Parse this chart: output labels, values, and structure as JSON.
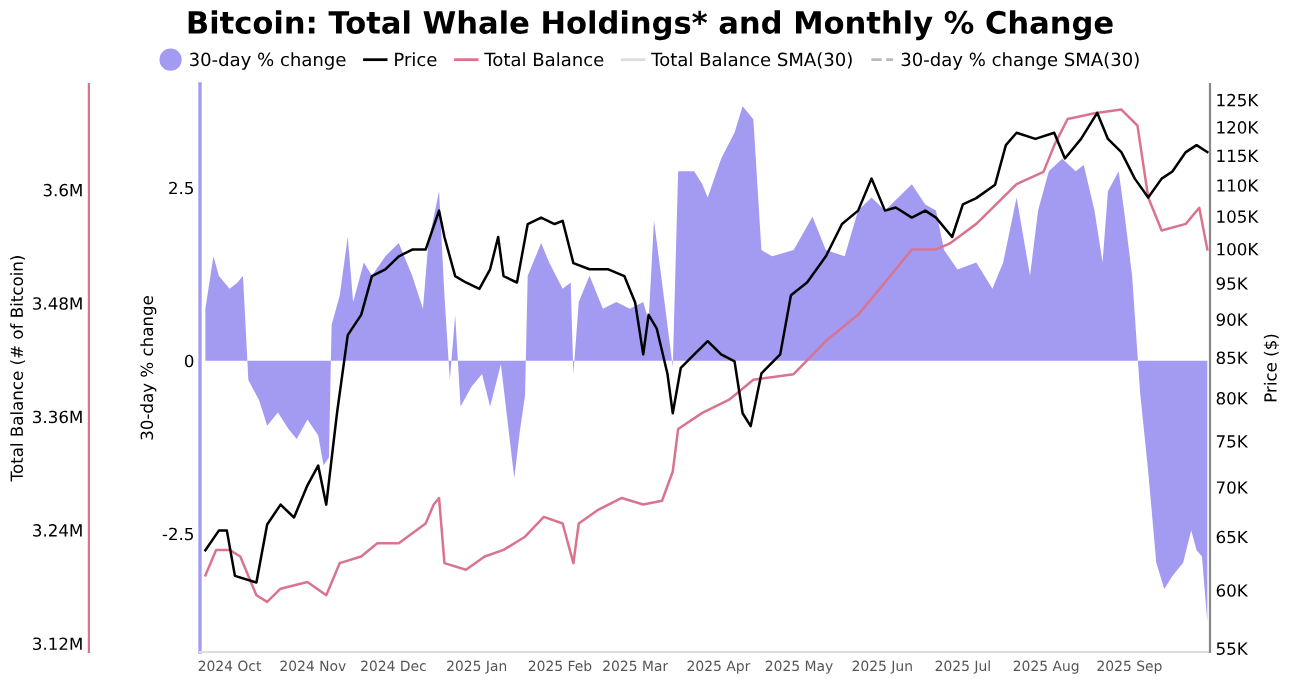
{
  "chart_data": {
    "type": "line",
    "title": "Bitcoin: Total Whale Holdings* and Monthly % Change",
    "ylabel": "Total Balance (# of Bitcoin)",
    "y2label": "Price ($)",
    "y3label": "30-day % change",
    "xlim": [
      "2024-09-20",
      "2025-10-01"
    ],
    "xticks": [
      {
        "value": "2024-10-01",
        "label": "2024 Oct"
      },
      {
        "value": "2024-11-01",
        "label": "2024 Nov"
      },
      {
        "value": "2024-12-01",
        "label": "2024 Dec"
      },
      {
        "value": "2025-01-01",
        "label": "2025 Jan"
      },
      {
        "value": "2025-02-01",
        "label": "2025 Feb"
      },
      {
        "value": "2025-03-01",
        "label": "2025 Mar"
      },
      {
        "value": "2025-04-01",
        "label": "2025 Apr"
      },
      {
        "value": "2025-05-01",
        "label": "2025 May"
      },
      {
        "value": "2025-06-01",
        "label": "2025 Jun"
      },
      {
        "value": "2025-07-01",
        "label": "2025 Jul"
      },
      {
        "value": "2025-08-01",
        "label": "2025 Aug"
      },
      {
        "value": "2025-09-01",
        "label": "2025 Sep"
      }
    ],
    "ylim": [
      3.111,
      3.712
    ],
    "yticks": [
      {
        "value": 3.12,
        "label": "3.12M"
      },
      {
        "value": 3.24,
        "label": "3.24M"
      },
      {
        "value": 3.36,
        "label": "3.36M"
      },
      {
        "value": 3.48,
        "label": "3.48M"
      },
      {
        "value": 3.6,
        "label": "3.6M"
      }
    ],
    "y3lim": [
      -4.21,
      4.0
    ],
    "y3ticks": [
      -2.5,
      0,
      2.5
    ],
    "log": "y2",
    "y2lim": [
      54.7,
      128
    ],
    "y2ticks": [
      {
        "value": 55,
        "label": "55K"
      },
      {
        "value": 60,
        "label": "60K"
      },
      {
        "value": 65,
        "label": "65K"
      },
      {
        "value": 70,
        "label": "70K"
      },
      {
        "value": 75,
        "label": "75K"
      },
      {
        "value": 80,
        "label": "80K"
      },
      {
        "value": 85,
        "label": "85K"
      },
      {
        "value": 90,
        "label": "90K"
      },
      {
        "value": 95,
        "label": "95K"
      },
      {
        "value": 100,
        "label": "100K"
      },
      {
        "value": 105,
        "label": "105K"
      },
      {
        "value": 110,
        "label": "110K"
      },
      {
        "value": 115,
        "label": "115K"
      },
      {
        "value": 120,
        "label": "120K"
      },
      {
        "value": 125,
        "label": "125K"
      }
    ],
    "legend": "top",
    "grid": false,
    "series": [
      {
        "name": "30-day % change",
        "type": "area",
        "axis": "y3",
        "color": "#a39bf2",
        "x": [
          "2024-09-22",
          "2024-09-25",
          "2024-09-27",
          "2024-10-01",
          "2024-10-04",
          "2024-10-06",
          "2024-10-08",
          "2024-10-12",
          "2024-10-15",
          "2024-10-19",
          "2024-10-23",
          "2024-10-26",
          "2024-10-30",
          "2024-11-03",
          "2024-11-05",
          "2024-11-07",
          "2024-11-08",
          "2024-11-11",
          "2024-11-14",
          "2024-11-16",
          "2024-11-20",
          "2024-11-23",
          "2024-11-28",
          "2024-12-03",
          "2024-12-08",
          "2024-12-12",
          "2024-12-14",
          "2024-12-18",
          "2024-12-20",
          "2024-12-22",
          "2024-12-24",
          "2024-12-26",
          "2024-12-30",
          "2025-01-03",
          "2025-01-06",
          "2025-01-10",
          "2025-01-13",
          "2025-01-15",
          "2025-01-17",
          "2025-01-19",
          "2025-01-20",
          "2025-01-25",
          "2025-01-28",
          "2025-02-02",
          "2025-02-05",
          "2025-02-06",
          "2025-02-08",
          "2025-02-12",
          "2025-02-17",
          "2025-02-22",
          "2025-02-27",
          "2025-03-04",
          "2025-03-06",
          "2025-03-08",
          "2025-03-11",
          "2025-03-15",
          "2025-03-17",
          "2025-03-23",
          "2025-03-26",
          "2025-03-28",
          "2025-04-02",
          "2025-04-07",
          "2025-04-10",
          "2025-04-14",
          "2025-04-17",
          "2025-04-21",
          "2025-04-29",
          "2025-05-06",
          "2025-05-11",
          "2025-05-18",
          "2025-05-23",
          "2025-05-28",
          "2025-06-02",
          "2025-06-12",
          "2025-06-17",
          "2025-06-21",
          "2025-06-24",
          "2025-06-29",
          "2025-07-06",
          "2025-07-12",
          "2025-07-16",
          "2025-07-21",
          "2025-07-26",
          "2025-07-29",
          "2025-08-02",
          "2025-08-07",
          "2025-08-12",
          "2025-08-15",
          "2025-08-19",
          "2025-08-22",
          "2025-08-24",
          "2025-08-28",
          "2025-08-30",
          "2025-09-02",
          "2025-09-05",
          "2025-09-08",
          "2025-09-11",
          "2025-09-14",
          "2025-09-17",
          "2025-09-21",
          "2025-09-24",
          "2025-09-26",
          "2025-09-28",
          "2025-09-30"
        ],
        "values": [
          0.75,
          1.51,
          1.23,
          1.04,
          1.13,
          1.23,
          -0.28,
          -0.57,
          -0.94,
          -0.75,
          -0.99,
          -1.13,
          -0.85,
          -1.08,
          -1.51,
          -1.4,
          0.52,
          0.94,
          1.79,
          0.85,
          1.42,
          1.23,
          1.51,
          1.7,
          1.23,
          0.75,
          1.7,
          2.45,
          0.94,
          -0.28,
          0.66,
          -0.66,
          -0.38,
          -0.19,
          -0.66,
          -0.05,
          -1.04,
          -1.7,
          -1.04,
          -0.5,
          1.23,
          1.7,
          1.42,
          1.04,
          1.13,
          -0.19,
          0.85,
          1.23,
          0.75,
          0.85,
          0.75,
          0.85,
          0.57,
          2.03,
          1.13,
          -0.09,
          2.74,
          2.74,
          2.55,
          2.36,
          2.92,
          3.3,
          3.68,
          3.49,
          1.6,
          1.51,
          1.6,
          2.08,
          1.6,
          1.51,
          2.17,
          2.36,
          2.17,
          2.55,
          2.26,
          2.17,
          1.6,
          1.32,
          1.42,
          1.04,
          1.42,
          2.36,
          1.23,
          2.17,
          2.74,
          2.92,
          2.74,
          2.83,
          2.17,
          1.42,
          2.45,
          2.74,
          2.17,
          1.23,
          -0.47,
          -1.6,
          -2.92,
          -3.3,
          -3.11,
          -2.92,
          -2.45,
          -2.74,
          -2.83,
          -3.77
        ]
      },
      {
        "name": "Price",
        "axis": "y2",
        "color": "#000000",
        "x": [
          "2024-09-22",
          "2024-09-27",
          "2024-09-30",
          "2024-10-03",
          "2024-10-11",
          "2024-10-15",
          "2024-10-20",
          "2024-10-25",
          "2024-10-30",
          "2024-11-03",
          "2024-11-06",
          "2024-11-10",
          "2024-11-14",
          "2024-11-19",
          "2024-11-23",
          "2024-11-28",
          "2024-12-03",
          "2024-12-08",
          "2024-12-13",
          "2024-12-18",
          "2024-12-20",
          "2024-12-24",
          "2024-12-28",
          "2025-01-02",
          "2025-01-06",
          "2025-01-09",
          "2025-01-11",
          "2025-01-16",
          "2025-01-20",
          "2025-01-25",
          "2025-01-30",
          "2025-02-02",
          "2025-02-06",
          "2025-02-12",
          "2025-02-19",
          "2025-02-25",
          "2025-03-01",
          "2025-03-04",
          "2025-03-06",
          "2025-03-09",
          "2025-03-13",
          "2025-03-15",
          "2025-03-18",
          "2025-03-23",
          "2025-03-28",
          "2025-04-02",
          "2025-04-07",
          "2025-04-10",
          "2025-04-13",
          "2025-04-17",
          "2025-04-24",
          "2025-04-28",
          "2025-05-04",
          "2025-05-11",
          "2025-05-17",
          "2025-05-23",
          "2025-05-28",
          "2025-06-02",
          "2025-06-06",
          "2025-06-12",
          "2025-06-17",
          "2025-06-21",
          "2025-06-27",
          "2025-07-01",
          "2025-07-06",
          "2025-07-13",
          "2025-07-17",
          "2025-07-21",
          "2025-07-28",
          "2025-08-04",
          "2025-08-08",
          "2025-08-14",
          "2025-08-20",
          "2025-08-24",
          "2025-08-29",
          "2025-09-03",
          "2025-09-08",
          "2025-09-13",
          "2025-09-17",
          "2025-09-22",
          "2025-09-26",
          "2025-09-30"
        ],
        "values": [
          63.7,
          65.6,
          65.6,
          61.3,
          60.7,
          66.2,
          68.2,
          66.9,
          70.2,
          72.3,
          68.2,
          78.2,
          87.9,
          90.6,
          96.0,
          97.0,
          98.9,
          99.9,
          99.9,
          105.9,
          101.8,
          96.0,
          95.1,
          94.2,
          97.0,
          101.8,
          96.0,
          95.1,
          103.8,
          104.8,
          103.8,
          104.3,
          97.9,
          97.0,
          97.0,
          96.0,
          92.3,
          85.4,
          90.6,
          88.8,
          83.0,
          78.2,
          83.7,
          85.4,
          87.1,
          85.4,
          84.5,
          78.2,
          76.7,
          83.0,
          85.4,
          93.3,
          95.1,
          98.9,
          103.8,
          105.9,
          111.1,
          105.9,
          106.4,
          104.8,
          105.9,
          104.8,
          101.8,
          106.9,
          107.9,
          110.1,
          116.8,
          119.0,
          117.9,
          119.0,
          114.5,
          117.9,
          122.6,
          117.9,
          115.6,
          111.1,
          108.0,
          111.1,
          112.3,
          115.6,
          116.8,
          115.6
        ]
      },
      {
        "name": "Total Balance",
        "type": "line",
        "axis": "y",
        "color": "#d9748f",
        "x": [
          "2024-09-22",
          "2024-09-26",
          "2024-10-01",
          "2024-10-05",
          "2024-10-11",
          "2024-10-15",
          "2024-10-20",
          "2024-10-30",
          "2024-11-06",
          "2024-11-11",
          "2024-11-19",
          "2024-11-25",
          "2024-12-03",
          "2024-12-13",
          "2024-12-16",
          "2024-12-18",
          "2024-12-20",
          "2024-12-28",
          "2025-01-04",
          "2025-01-11",
          "2025-01-19",
          "2025-01-26",
          "2025-02-02",
          "2025-02-06",
          "2025-02-08",
          "2025-02-15",
          "2025-02-24",
          "2025-03-04",
          "2025-03-11",
          "2025-03-15",
          "2025-03-17",
          "2025-03-26",
          "2025-04-05",
          "2025-04-14",
          "2025-04-29",
          "2025-05-11",
          "2025-05-23",
          "2025-06-02",
          "2025-06-12",
          "2025-06-21",
          "2025-06-26",
          "2025-07-06",
          "2025-07-16",
          "2025-07-21",
          "2025-07-31",
          "2025-08-04",
          "2025-08-09",
          "2025-08-19",
          "2025-08-29",
          "2025-09-04",
          "2025-09-08",
          "2025-09-13",
          "2025-09-22",
          "2025-09-27",
          "2025-09-30"
        ],
        "values": [
          3.192,
          3.219,
          3.219,
          3.212,
          3.171,
          3.164,
          3.178,
          3.185,
          3.171,
          3.205,
          3.212,
          3.226,
          3.226,
          3.247,
          3.267,
          3.274,
          3.205,
          3.198,
          3.212,
          3.219,
          3.233,
          3.254,
          3.247,
          3.205,
          3.247,
          3.261,
          3.274,
          3.267,
          3.271,
          3.302,
          3.347,
          3.364,
          3.378,
          3.399,
          3.405,
          3.44,
          3.468,
          3.502,
          3.537,
          3.537,
          3.543,
          3.564,
          3.592,
          3.606,
          3.619,
          3.647,
          3.675,
          3.681,
          3.685,
          3.668,
          3.592,
          3.557,
          3.564,
          3.581,
          3.537
        ]
      },
      {
        "name": "Total Balance SMA(30)",
        "type": "line",
        "axis": "y",
        "color": "#dddddd"
      },
      {
        "name": "30-day % change SMA(30)",
        "type": "line",
        "axis": "y3",
        "color": "#bbbbbb",
        "line_style": "dashed"
      }
    ]
  }
}
